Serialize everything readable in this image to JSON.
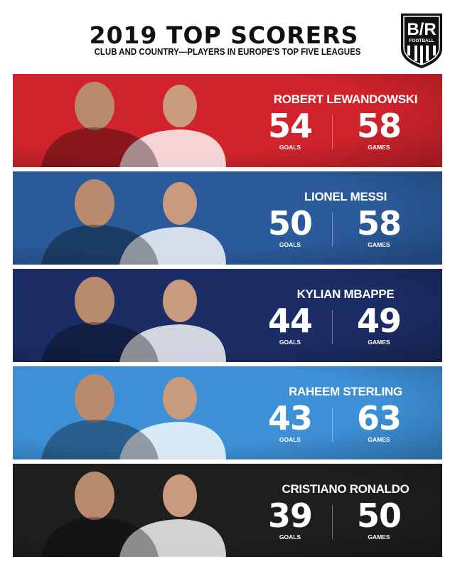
{
  "header": {
    "title": "2019 TOP SCORERS",
    "subtitle": "CLUB AND COUNTRY—PLAYERS IN EUROPE'S TOP FIVE LEAGUES",
    "logo_text": "B/R",
    "logo_subtext": "FOOTBALL"
  },
  "labels": {
    "goals": "GOALS",
    "games": "GAMES"
  },
  "players": [
    {
      "name": "ROBERT LEWANDOWSKI",
      "goals": "54",
      "games": "58",
      "color": "#d0232b"
    },
    {
      "name": "LIONEL MESSI",
      "goals": "50",
      "games": "58",
      "color": "#2a5a9a"
    },
    {
      "name": "KYLIAN MBAPPE",
      "goals": "44",
      "games": "49",
      "color": "#1c2d66"
    },
    {
      "name": "RAHEEM STERLING",
      "goals": "43",
      "games": "63",
      "color": "#3d8fd6"
    },
    {
      "name": "CRISTIANO RONALDO",
      "goals": "39",
      "games": "50",
      "color": "#1e1e1e"
    }
  ]
}
